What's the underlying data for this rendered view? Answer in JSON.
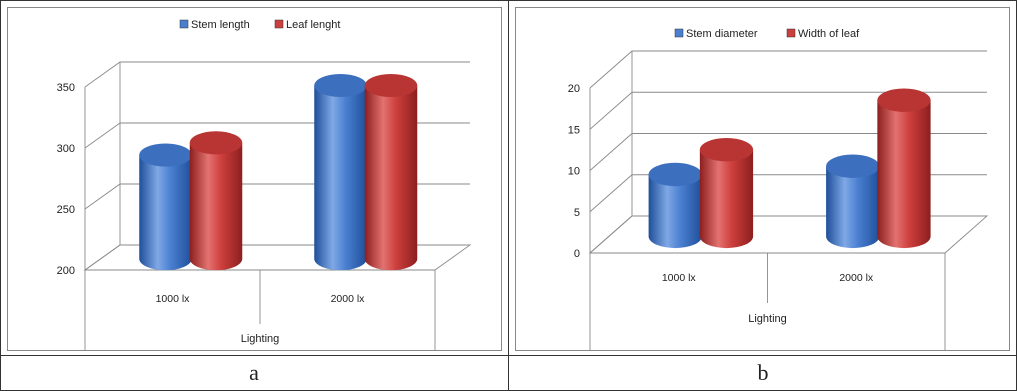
{
  "captions": [
    "a",
    "b"
  ],
  "colors": {
    "blue": "#4a7fd0",
    "red": "#cd3f3d"
  },
  "chart_data": [
    {
      "type": "bar",
      "title": "",
      "categories": [
        "1000 lx",
        "2000 lx"
      ],
      "series": [
        {
          "name": "Stem length",
          "values": [
            285,
            342
          ]
        },
        {
          "name": "Leaf lenght",
          "values": [
            295,
            342
          ]
        }
      ],
      "xlabel": "Lighting",
      "ylabel": "",
      "ylim": [
        200,
        350
      ],
      "yticks": [
        "200",
        "250",
        "300",
        "350"
      ],
      "legend": "top",
      "grid": true
    },
    {
      "type": "bar",
      "title": "",
      "categories": [
        "1000 lx",
        "2000 lx"
      ],
      "series": [
        {
          "name": "Stem diameter",
          "values": [
            7.5,
            8.5
          ]
        },
        {
          "name": "Width of leaf",
          "values": [
            10.5,
            16.5
          ]
        }
      ],
      "xlabel": "Lighting",
      "ylabel": "",
      "ylim": [
        0,
        20
      ],
      "yticks": [
        "0",
        "5",
        "10",
        "15",
        "20"
      ],
      "legend": "top",
      "grid": true
    }
  ]
}
